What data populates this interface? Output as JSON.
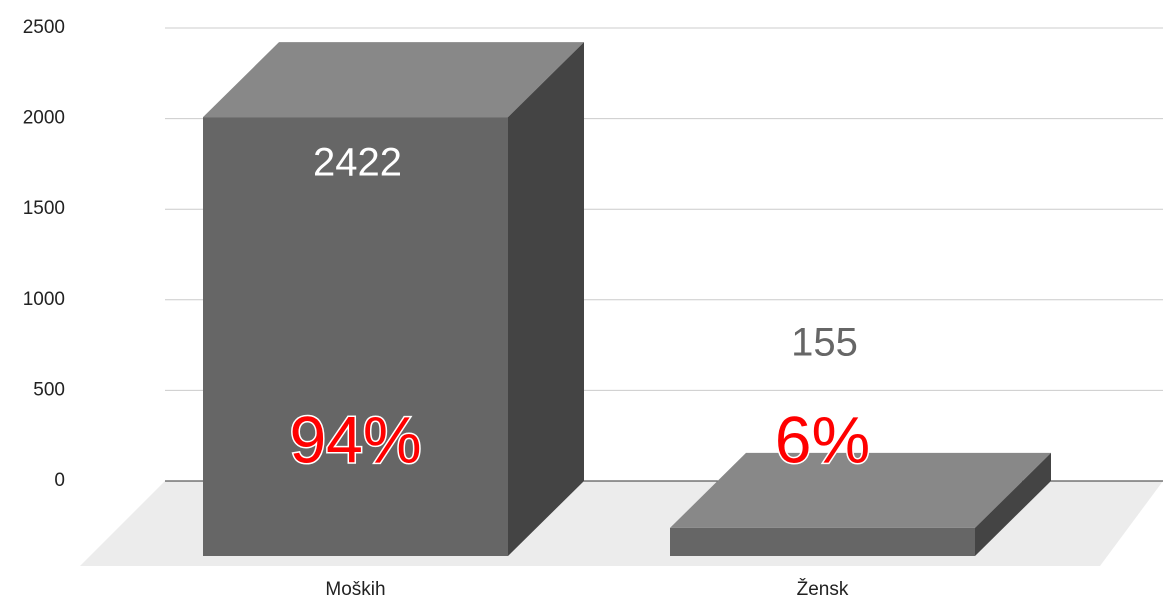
{
  "chart_data": {
    "type": "bar3d",
    "categories": [
      "Moških",
      "Žensk"
    ],
    "values": [
      2422,
      155
    ],
    "annotations": [
      "94%",
      "6%"
    ],
    "colors": {
      "front": "#666666",
      "top": "#888888",
      "side": "#444444"
    },
    "ylim": [
      0,
      2500
    ],
    "yticks": [
      0,
      500,
      1000,
      1500,
      2000,
      2500
    ],
    "grid": true
  }
}
